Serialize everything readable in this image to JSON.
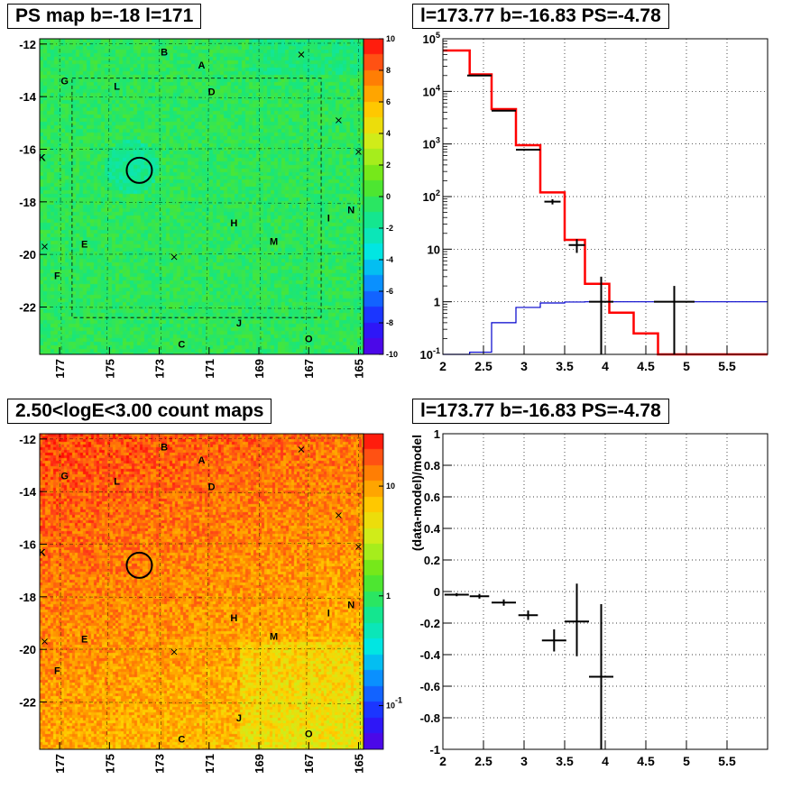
{
  "panels": {
    "ps_map": {
      "title": "PS map b=-18 l=171"
    },
    "spectrum": {
      "title": "l=173.77 b=-16.83 PS=-4.78"
    },
    "count_map": {
      "title": "2.50<logE<3.00 count maps"
    },
    "residual": {
      "title": "l=173.77 b=-16.83 PS=-4.78"
    }
  },
  "chart_data": [
    {
      "id": "ps_map",
      "type": "heatmap",
      "title": "PS map b=-18 l=171",
      "ylim": [
        -23.8,
        -11.8
      ],
      "xlim": [
        177.8,
        164.8
      ],
      "y_ticks": [
        "-12",
        "-14",
        "-16",
        "-18",
        "-20",
        "-22"
      ],
      "y_tick_values": [
        -12,
        -14,
        -16,
        -18,
        -20,
        -22
      ],
      "x_ticks": [
        "177",
        "175",
        "173",
        "171",
        "169",
        "167",
        "165"
      ],
      "x_tick_values": [
        177,
        175,
        173,
        171,
        169,
        167,
        165
      ],
      "colorbar_ticks": [
        "10",
        "8",
        "6",
        "4",
        "2",
        "0",
        "-2",
        "-4",
        "-6",
        "-8",
        "-10"
      ],
      "colorbar_range": [
        -10,
        10
      ],
      "labels": [
        {
          "text": "B",
          "l": 172.8,
          "b": -12.3
        },
        {
          "text": "A",
          "l": 171.3,
          "b": -12.8
        },
        {
          "text": "G",
          "l": 176.8,
          "b": -13.4
        },
        {
          "text": "L",
          "l": 174.7,
          "b": -13.6
        },
        {
          "text": "D",
          "l": 170.9,
          "b": -13.8
        },
        {
          "text": "K",
          "l": 177.7,
          "b": -16.3
        },
        {
          "text": "H",
          "l": 170.0,
          "b": -18.8
        },
        {
          "text": "I",
          "l": 166.2,
          "b": -18.6
        },
        {
          "text": "N",
          "l": 165.3,
          "b": -18.3
        },
        {
          "text": "M",
          "l": 168.4,
          "b": -19.5
        },
        {
          "text": "E",
          "l": 176.0,
          "b": -19.6
        },
        {
          "text": "F",
          "l": 177.1,
          "b": -20.8
        },
        {
          "text": "J",
          "l": 169.8,
          "b": -22.6
        },
        {
          "text": "C",
          "l": 172.1,
          "b": -23.4
        },
        {
          "text": "O",
          "l": 167.0,
          "b": -23.2
        }
      ],
      "crosses": [
        [
          167.3,
          -12.4
        ],
        [
          165.8,
          -14.9
        ],
        [
          165.0,
          -16.1
        ],
        [
          177.6,
          -19.7
        ],
        [
          172.4,
          -20.1
        ]
      ],
      "circle": {
        "l": 173.8,
        "b": -16.8
      }
    },
    {
      "id": "spectrum",
      "type": "line",
      "title": "l=173.77 b=-16.83 PS=-4.78",
      "xlabel": "",
      "ylabel": "",
      "xlim": [
        2.0,
        6.0
      ],
      "ylim_log10": [
        -1,
        5
      ],
      "x_ticks": [
        "2",
        "2.5",
        "3",
        "3.5",
        "4",
        "4.5",
        "5",
        "5.5"
      ],
      "x_tick_values": [
        2,
        2.5,
        3,
        3.5,
        4,
        4.5,
        5,
        5.5
      ],
      "y_ticks": [
        "10^5",
        "10^4",
        "10^3",
        "10^2",
        "10",
        "1",
        "10^-1"
      ],
      "y_tick_values": [
        100000,
        10000,
        1000,
        100,
        10,
        1,
        0.1
      ],
      "grid": true,
      "series": [
        {
          "name": "",
          "style": "step",
          "color": "#ff0000",
          "edges": [
            2.0,
            2.33,
            2.6,
            2.9,
            3.2,
            3.5,
            3.75,
            4.05,
            4.35,
            4.65,
            6.0
          ],
          "values": [
            60000,
            21000,
            4600,
            950,
            120,
            15,
            2.2,
            0.62,
            0.25,
            0.1
          ]
        },
        {
          "name": "",
          "style": "step",
          "color": "#0000cc",
          "edges": [
            2.0,
            2.33,
            2.6,
            2.9,
            3.2,
            3.5,
            3.75,
            4.05,
            4.35,
            4.65,
            4.95,
            6.0
          ],
          "values": [
            0.1,
            0.11,
            0.4,
            0.78,
            0.95,
            0.99,
            1.0,
            1.0,
            1.0,
            1.0,
            1.0
          ]
        },
        {
          "name": "",
          "style": "errorbar",
          "color": "#000000",
          "points": [
            {
              "x": 2.45,
              "y": 20000,
              "xerr": 0.15,
              "ylo": 19800,
              "yhi": 20200
            },
            {
              "x": 2.75,
              "y": 4300,
              "xerr": 0.15,
              "ylo": 4200,
              "yhi": 4400
            },
            {
              "x": 3.05,
              "y": 780,
              "xerr": 0.15,
              "ylo": 750,
              "yhi": 810
            },
            {
              "x": 3.35,
              "y": 80,
              "xerr": 0.1,
              "ylo": 71,
              "yhi": 89
            },
            {
              "x": 3.65,
              "y": 12,
              "xerr": 0.1,
              "ylo": 8.5,
              "yhi": 15.5
            },
            {
              "x": 3.95,
              "y": 1.0,
              "xerr": 0.15,
              "ylo": 0.1,
              "yhi": 3.0
            },
            {
              "x": 4.85,
              "y": 1.0,
              "xerr": 0.25,
              "ylo": 0.1,
              "yhi": 2.0
            }
          ]
        }
      ]
    },
    {
      "id": "count_map",
      "type": "heatmap",
      "title": "2.50<logE<3.00 count maps",
      "ylim": [
        -23.8,
        -11.8
      ],
      "xlim": [
        177.8,
        164.8
      ],
      "y_ticks": [
        "-12",
        "-14",
        "-16",
        "-18",
        "-20",
        "-22"
      ],
      "y_tick_values": [
        -12,
        -14,
        -16,
        -18,
        -20,
        -22
      ],
      "x_ticks": [
        "177",
        "175",
        "173",
        "171",
        "169",
        "167",
        "165"
      ],
      "x_tick_values": [
        177,
        175,
        173,
        171,
        169,
        167,
        165
      ],
      "colorbar_scale": "log",
      "colorbar_ticks": [
        "10",
        "1",
        "10^-1"
      ],
      "colorbar_tick_values": [
        10,
        1,
        0.1
      ]
    },
    {
      "id": "residual",
      "type": "scatter",
      "title": "l=173.77 b=-16.83 PS=-4.78",
      "xlabel": "",
      "ylabel": "(data-model)/model",
      "xlim": [
        2.0,
        6.0
      ],
      "ylim": [
        -1.0,
        1.0
      ],
      "x_ticks": [
        "2",
        "2.5",
        "3",
        "3.5",
        "4",
        "4.5",
        "5",
        "5.5"
      ],
      "x_tick_values": [
        2,
        2.5,
        3,
        3.5,
        4,
        4.5,
        5,
        5.5
      ],
      "y_ticks": [
        "1",
        "0.8",
        "0.6",
        "0.4",
        "0.2",
        "0",
        "-0.2",
        "-0.4",
        "-0.6",
        "-0.8",
        "-1"
      ],
      "y_tick_values": [
        1,
        0.8,
        0.6,
        0.4,
        0.2,
        0,
        -0.2,
        -0.4,
        -0.6,
        -0.8,
        -1
      ],
      "grid": true,
      "points": [
        {
          "x": 2.17,
          "y": -0.02,
          "xerr": 0.15,
          "ylo": -0.03,
          "yhi": -0.01
        },
        {
          "x": 2.45,
          "y": -0.03,
          "xerr": 0.12,
          "ylo": -0.045,
          "yhi": -0.015
        },
        {
          "x": 2.75,
          "y": -0.07,
          "xerr": 0.15,
          "ylo": -0.09,
          "yhi": -0.05
        },
        {
          "x": 3.05,
          "y": -0.15,
          "xerr": 0.12,
          "ylo": -0.18,
          "yhi": -0.12
        },
        {
          "x": 3.37,
          "y": -0.31,
          "xerr": 0.15,
          "ylo": -0.38,
          "yhi": -0.24
        },
        {
          "x": 3.65,
          "y": -0.19,
          "xerr": 0.15,
          "ylo": -0.41,
          "yhi": 0.05
        },
        {
          "x": 3.95,
          "y": -0.54,
          "xerr": 0.15,
          "ylo": -1.0,
          "yhi": -0.08
        }
      ]
    }
  ]
}
